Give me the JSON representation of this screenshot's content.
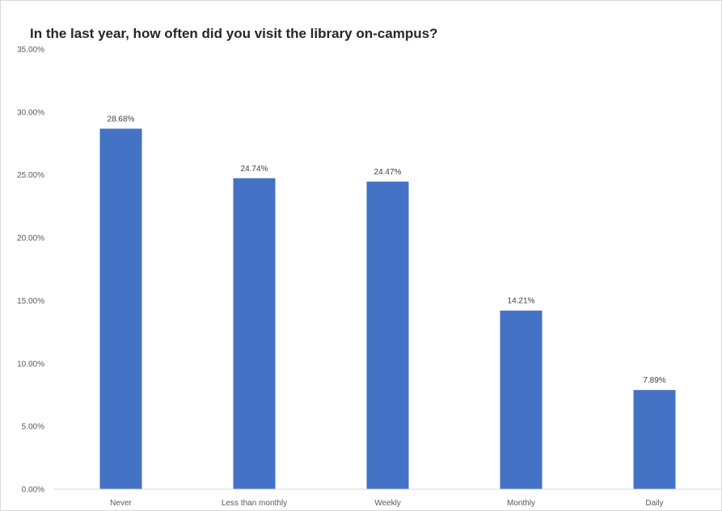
{
  "chart_data": {
    "type": "bar",
    "title": "In the last year, how often did you visit the library on-campus?",
    "categories": [
      "Never",
      "Less than monthly",
      "Weekly",
      "Monthly",
      "Daily"
    ],
    "values": [
      28.68,
      24.74,
      24.47,
      14.21,
      7.89
    ],
    "data_labels": [
      "28.68%",
      "24.74%",
      "24.47%",
      "14.21%",
      "7.89%"
    ],
    "ylim": [
      0,
      35
    ],
    "yticks": [
      0,
      5,
      10,
      15,
      20,
      25,
      30,
      35
    ],
    "ytick_labels": [
      "0.00%",
      "5.00%",
      "10.00%",
      "15.00%",
      "20.00%",
      "25.00%",
      "30.00%",
      "35.00%"
    ],
    "xlabel": "",
    "ylabel": "",
    "grid": false,
    "legend": "none",
    "bar_color": "#4472c4"
  }
}
